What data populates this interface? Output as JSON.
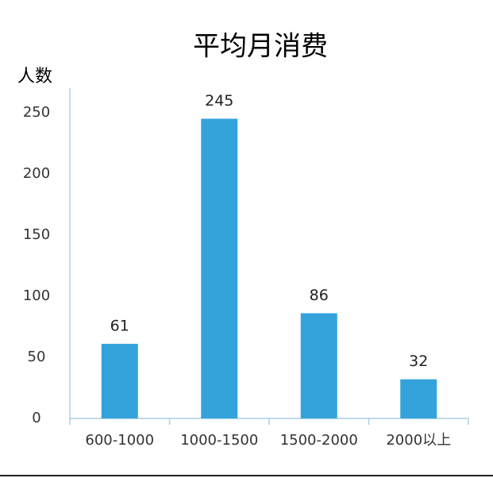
{
  "chart_data": {
    "type": "bar",
    "title": "平均月消费",
    "y_label": "人数",
    "categories": [
      "600-1000",
      "1000-1500",
      "1500-2000",
      "2000以上"
    ],
    "values": [
      61,
      245,
      86,
      32
    ],
    "color": "#34a3dc",
    "ylim": [
      0,
      270
    ],
    "yticks": [
      0,
      50,
      100,
      150,
      200,
      250
    ],
    "grid": false
  }
}
